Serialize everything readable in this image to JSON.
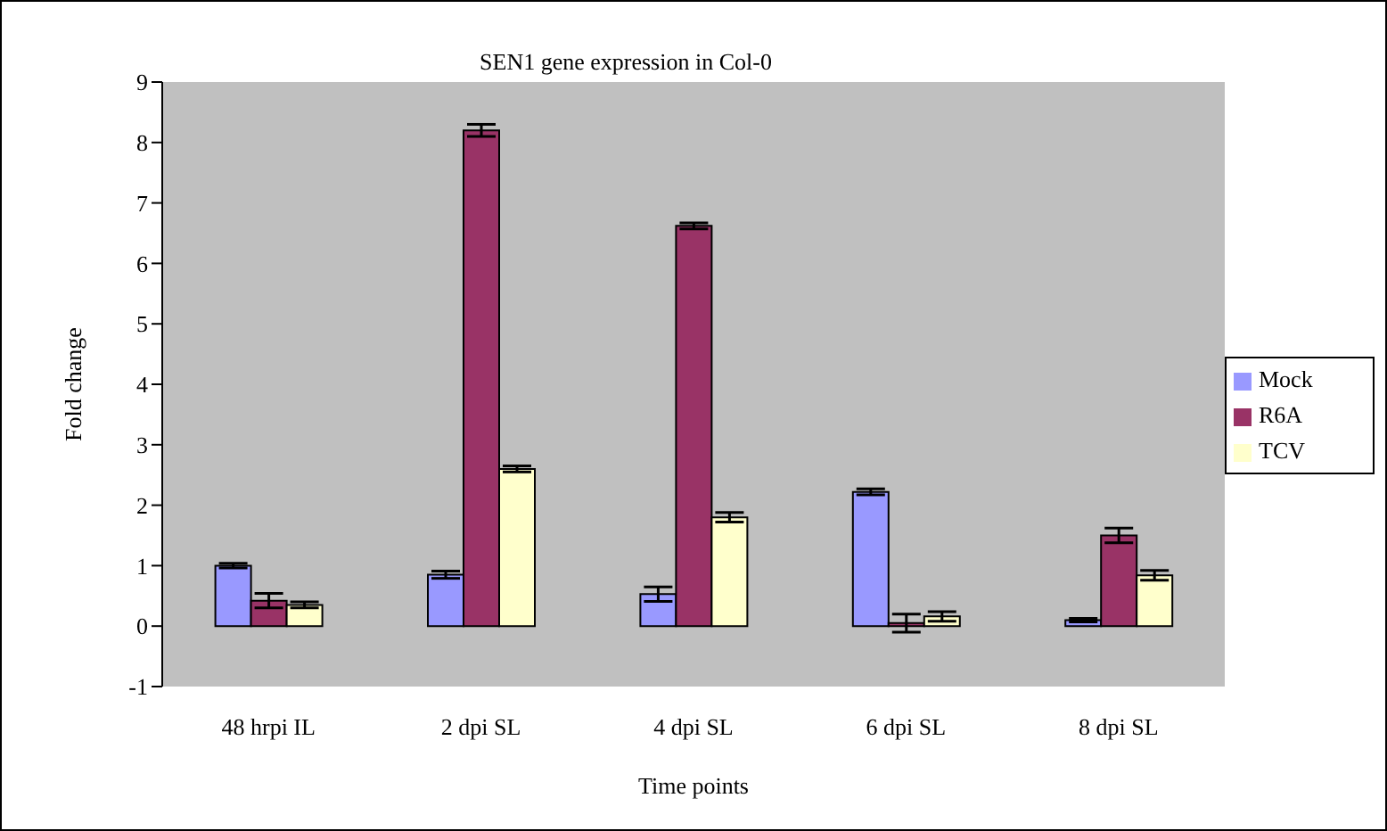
{
  "chart_data": {
    "type": "bar",
    "title": "SEN1 gene expression in Col-0",
    "xlabel": "Time points",
    "ylabel": "Fold change",
    "categories": [
      "48 hrpi IL",
      "2 dpi SL",
      "4 dpi SL",
      "6 dpi SL",
      "8 dpi SL"
    ],
    "series": [
      {
        "name": "Mock",
        "color": "#9999ff",
        "values": [
          1.0,
          0.85,
          0.53,
          2.22,
          0.1
        ],
        "errors": [
          0.04,
          0.06,
          0.12,
          0.05,
          0.03
        ]
      },
      {
        "name": "R6A",
        "color": "#993366",
        "values": [
          0.42,
          8.2,
          6.62,
          0.05,
          1.5
        ],
        "errors": [
          0.12,
          0.1,
          0.05,
          0.15,
          0.12
        ]
      },
      {
        "name": "TCV",
        "color": "#ffffcc",
        "values": [
          0.35,
          2.6,
          1.8,
          0.16,
          0.84
        ],
        "errors": [
          0.05,
          0.05,
          0.08,
          0.08,
          0.08
        ]
      }
    ],
    "ylim": [
      -1,
      9
    ],
    "yticks": [
      -1,
      0,
      1,
      2,
      3,
      4,
      5,
      6,
      7,
      8,
      9
    ],
    "grid": false,
    "legend": "right"
  }
}
